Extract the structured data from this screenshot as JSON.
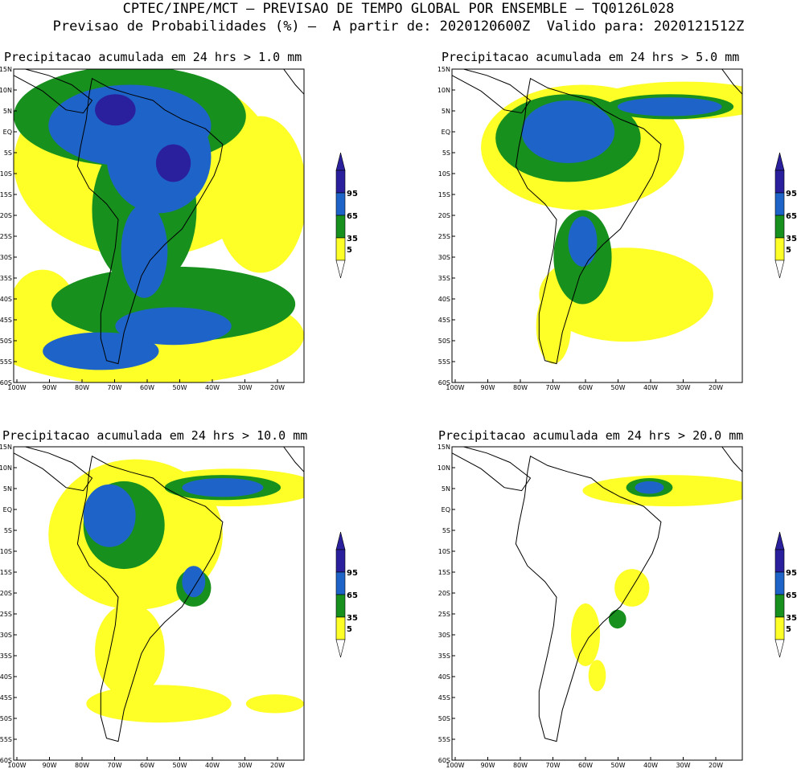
{
  "header": {
    "line1": "CPTEC/INPE/MCT – PREVISAO DE TEMPO GLOBAL POR ENSEMBLE – TQ0126L028",
    "line2": "Previsao de Probabilidades (%) –  A partir de: 2020120600Z  Valido para: 2020121512Z"
  },
  "panels": [
    {
      "title": "Precipitacao acumulada em 24 hrs > 1.0 mm"
    },
    {
      "title": "Precipitacao acumulada em 24 hrs > 5.0 mm"
    },
    {
      "title": "Precipitacao acumulada em 24 hrs > 10.0 mm"
    },
    {
      "title": "Precipitacao acumulada em 24 hrs > 20.0 mm"
    }
  ],
  "map_axes": {
    "lat_labels": [
      "15N",
      "10N",
      "5N",
      "EQ",
      "5S",
      "10S",
      "15S",
      "20S",
      "25S",
      "30S",
      "35S",
      "40S",
      "45S",
      "50S",
      "55S",
      "60S"
    ],
    "lon_labels": [
      "100W",
      "90W",
      "80W",
      "70W",
      "60W",
      "50W",
      "40W",
      "30W",
      "20W"
    ]
  },
  "colorbar": {
    "labels": [
      "95",
      "65",
      "35",
      "5"
    ],
    "colors": {
      "c95": "#2a1f9c",
      "c65": "#1e64c8",
      "c35": "#17901e",
      "c5": "#ffff28",
      "bg": "#ffffff"
    }
  }
}
